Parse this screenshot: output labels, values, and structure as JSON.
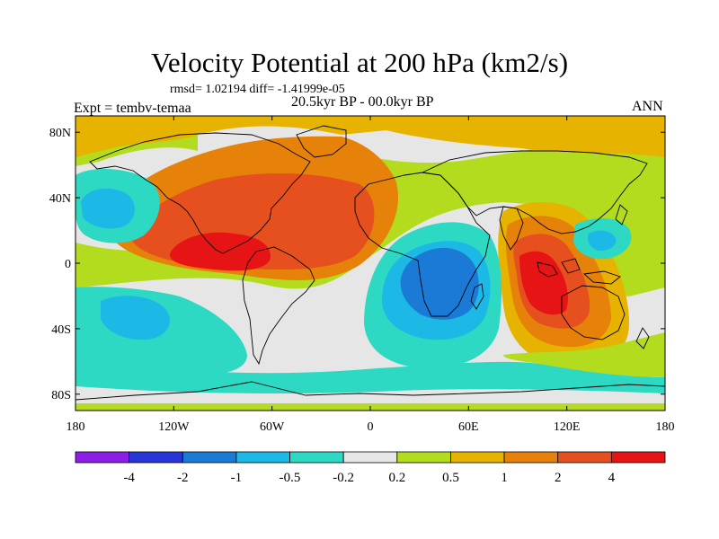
{
  "title": "Velocity Potential at 200 hPa (km2/s)",
  "stats": "rmsd= 1.02194 diff= -1.41999e-05",
  "expt": "Expt = tembv-temaa",
  "period": "20.5kyr BP - 00.0kyr BP",
  "season": "ANN",
  "lat_labels": [
    "80N",
    "40N",
    "0",
    "40S",
    "80S"
  ],
  "lon_labels": [
    "180",
    "120W",
    "60W",
    "0",
    "60E",
    "120E",
    "180"
  ],
  "colorbar": {
    "colors": [
      "#8c1ee6",
      "#2a35d9",
      "#1a7ad6",
      "#1cb8e6",
      "#2ed9c3",
      "#e6e6e6",
      "#b4dc1e",
      "#e6b400",
      "#e6820a",
      "#e6501e",
      "#e61414"
    ],
    "labels": [
      "-4",
      "-2",
      "-1",
      "-0.5",
      "-0.2",
      "0.2",
      "0.5",
      "1",
      "2",
      "4"
    ]
  }
}
